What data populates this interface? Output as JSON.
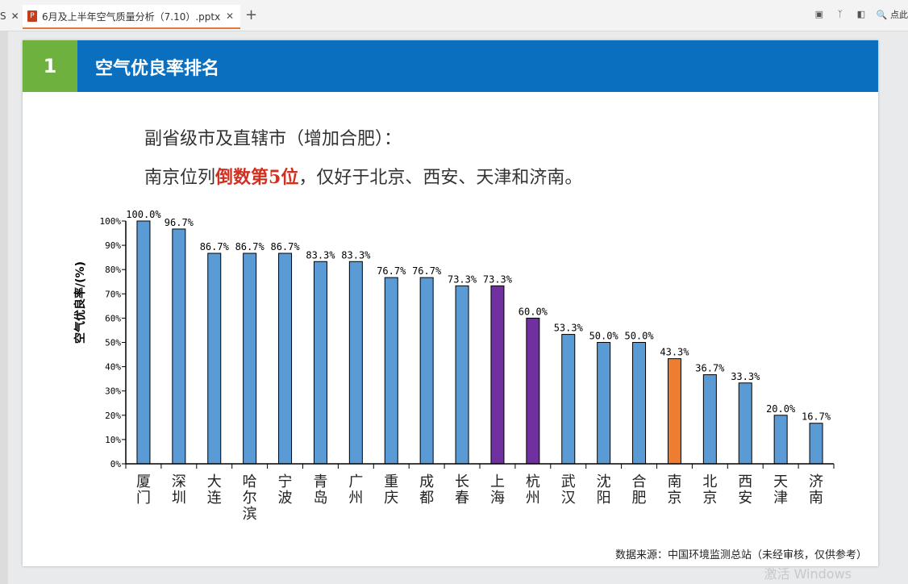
{
  "tabs": {
    "prev_partial": "S",
    "active_label": "6月及上半年空气质量分析（7.10）.pptx",
    "right_hint": "点此"
  },
  "slide": {
    "number": "1",
    "title": "空气优良率排名",
    "line1": "副省级市及直辖市（增加合肥）：",
    "line2_a": "南京位列",
    "line2_highlight": "倒数第5位",
    "line2_b": "，仅好于北京、西安、天津和济南。",
    "source": "数据来源：中国环境监测总站（未经审核，仅供参考）",
    "watermark": "激活 Windows"
  },
  "colors": {
    "banner": "#0b6fbf",
    "num_box": "#6fb13f",
    "bar_default": "#5b9bd5",
    "bar_purple": "#7030a0",
    "bar_orange": "#ed7d31",
    "highlight": "#d12f1f"
  },
  "chart_data": {
    "type": "bar",
    "ylabel": "空气优良率/(%)",
    "ylim": [
      0,
      100
    ],
    "yticks": [
      "0%",
      "10%",
      "20%",
      "30%",
      "40%",
      "50%",
      "60%",
      "70%",
      "80%",
      "90%",
      "100%"
    ],
    "categories": [
      "厦门",
      "深圳",
      "大连",
      "哈尔滨",
      "宁波",
      "青岛",
      "广州",
      "重庆",
      "成都",
      "长春",
      "上海",
      "杭州",
      "武汉",
      "沈阳",
      "合肥",
      "南京",
      "北京",
      "西安",
      "天津",
      "济南"
    ],
    "values": [
      100.0,
      96.7,
      86.7,
      86.7,
      86.7,
      83.3,
      83.3,
      76.7,
      76.7,
      73.3,
      73.3,
      60.0,
      53.3,
      50.0,
      50.0,
      43.3,
      36.7,
      33.3,
      20.0,
      16.7
    ],
    "labels": [
      "100.0%",
      "96.7%",
      "86.7%",
      "86.7%",
      "86.7%",
      "83.3%",
      "83.3%",
      "76.7%",
      "76.7%",
      "73.3%",
      "73.3%",
      "60.0%",
      "53.3%",
      "50.0%",
      "50.0%",
      "43.3%",
      "36.7%",
      "33.3%",
      "20.0%",
      "16.7%"
    ],
    "bar_colors": [
      "default",
      "default",
      "default",
      "default",
      "default",
      "default",
      "default",
      "default",
      "default",
      "default",
      "purple",
      "purple",
      "default",
      "default",
      "default",
      "orange",
      "default",
      "default",
      "default",
      "default"
    ],
    "grid": false,
    "legend": "none"
  }
}
